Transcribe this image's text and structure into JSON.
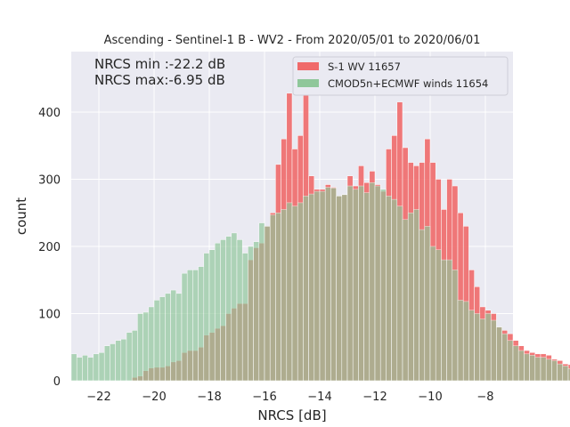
{
  "chart_data": {
    "type": "bar",
    "title": "Ascending - Sentinel-1 B - WV2 - From 2020/05/01 to 2020/06/01",
    "xlabel": "NRCS [dB]",
    "ylabel": "count",
    "xlim": [
      -23.0,
      -7.0
    ],
    "ylim": [
      0,
      490
    ],
    "xticks": [
      -22,
      -20,
      -18,
      -16,
      -14,
      -12,
      -10,
      -8
    ],
    "xtick_labels": [
      "−22",
      "−20",
      "−18",
      "−16",
      "−14",
      "−12",
      "−10",
      "−8"
    ],
    "yticks": [
      0,
      100,
      200,
      300,
      400
    ],
    "ytick_labels": [
      "0",
      "100",
      "200",
      "300",
      "400"
    ],
    "grid": true,
    "legend_position": "top-right",
    "annotations": [
      "NRCS min :-22.2 dB",
      "NRCS max:-6.95 dB"
    ],
    "bin_start": -23.0,
    "bin_width": 0.2,
    "series": [
      {
        "name": "S-1 WV 11657",
        "color": "#f06a6a",
        "values": [
          0,
          0,
          0,
          0,
          0,
          0,
          0,
          0,
          0,
          0,
          0,
          5,
          7,
          15,
          19,
          20,
          20,
          22,
          28,
          30,
          42,
          45,
          45,
          50,
          68,
          72,
          78,
          82,
          100,
          108,
          115,
          115,
          180,
          198,
          205,
          230,
          250,
          322,
          360,
          428,
          345,
          365,
          455,
          305,
          285,
          285,
          292,
          288,
          275,
          277,
          305,
          290,
          320,
          295,
          312,
          292,
          282,
          345,
          365,
          415,
          347,
          325,
          320,
          325,
          360,
          325,
          300,
          255,
          300,
          290,
          250,
          230,
          165,
          140,
          110,
          105,
          100,
          80,
          75,
          70,
          60,
          52,
          45,
          42,
          40,
          40,
          38,
          32,
          30,
          25,
          24,
          18,
          10,
          8,
          5,
          5
        ]
      },
      {
        "name": "CMOD5n+ECMWF winds 11654",
        "color": "#8fc79a",
        "values": [
          40,
          35,
          38,
          35,
          40,
          42,
          52,
          55,
          60,
          62,
          72,
          75,
          100,
          102,
          110,
          120,
          125,
          130,
          135,
          130,
          160,
          165,
          165,
          170,
          190,
          195,
          205,
          210,
          215,
          220,
          210,
          190,
          200,
          207,
          235,
          230,
          247,
          250,
          255,
          265,
          260,
          265,
          275,
          278,
          282,
          282,
          288,
          287,
          275,
          277,
          290,
          285,
          290,
          280,
          295,
          290,
          285,
          275,
          270,
          260,
          240,
          250,
          255,
          225,
          230,
          200,
          195,
          180,
          180,
          165,
          120,
          118,
          105,
          100,
          92,
          100,
          90,
          80,
          70,
          60,
          52,
          45,
          40,
          38,
          35,
          35,
          32,
          30,
          25,
          22,
          18,
          15,
          10,
          10,
          5,
          5
        ]
      }
    ]
  }
}
